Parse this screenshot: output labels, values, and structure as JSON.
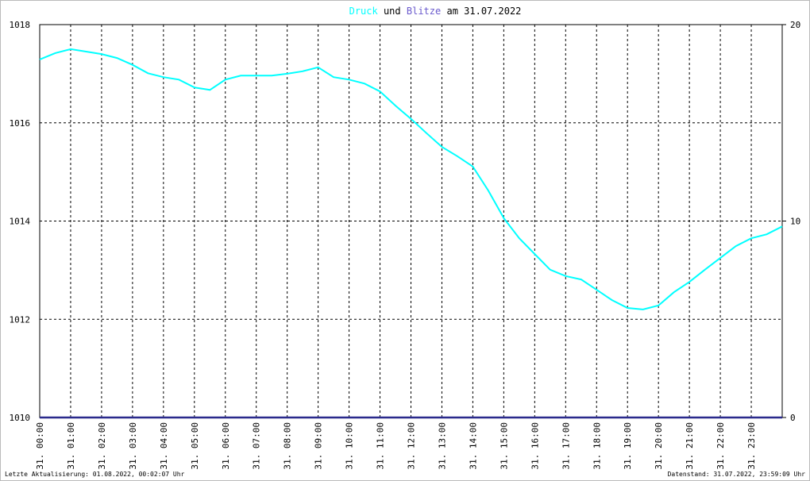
{
  "chart_data": {
    "type": "line",
    "title": [
      "Druck",
      "und",
      "Blitze",
      "am 31.07.2022"
    ],
    "x": [
      0,
      0.5,
      1,
      1.5,
      2,
      2.5,
      3,
      3.5,
      4,
      4.5,
      5,
      5.5,
      6,
      6.5,
      7,
      7.5,
      8,
      8.5,
      9,
      9.5,
      10,
      10.5,
      11,
      11.5,
      12,
      12.5,
      13,
      13.5,
      14,
      14.5,
      15,
      15.5,
      16,
      16.5,
      17,
      17.5,
      18,
      18.5,
      19,
      19.5,
      20,
      20.5,
      21,
      21.5,
      22,
      22.5,
      23,
      23.5,
      24
    ],
    "series": [
      {
        "name": "Druck",
        "color": "#00ffff",
        "values": [
          1017.29,
          1017.42,
          1017.5,
          1017.45,
          1017.4,
          1017.32,
          1017.18,
          1017.01,
          1016.93,
          1016.88,
          1016.72,
          1016.67,
          1016.88,
          1016.96,
          1016.96,
          1016.96,
          1017.0,
          1017.05,
          1017.13,
          1016.93,
          1016.88,
          1016.8,
          1016.64,
          1016.35,
          1016.08,
          1015.79,
          1015.51,
          1015.32,
          1015.11,
          1014.62,
          1014.06,
          1013.65,
          1013.33,
          1013.01,
          1012.88,
          1012.81,
          1012.6,
          1012.39,
          1012.23,
          1012.2,
          1012.28,
          1012.55,
          1012.76,
          1013.01,
          1013.25,
          1013.49,
          1013.65,
          1013.73,
          1013.89
        ]
      },
      {
        "name": "Blitze",
        "color": "#2a2a8c",
        "axis": "y2",
        "values": [
          0,
          0,
          0,
          0,
          0,
          0,
          0,
          0,
          0,
          0,
          0,
          0,
          0,
          0,
          0,
          0,
          0,
          0,
          0,
          0,
          0,
          0,
          0,
          0,
          0,
          0,
          0,
          0,
          0,
          0,
          0,
          0,
          0,
          0,
          0,
          0,
          0,
          0,
          0,
          0,
          0,
          0,
          0,
          0,
          0,
          0,
          0,
          0,
          0
        ]
      }
    ],
    "xlim": [
      0,
      24
    ],
    "xticks": [
      {
        "value": 0,
        "label": "31. 00:00"
      },
      {
        "value": 1,
        "label": "31. 01:00"
      },
      {
        "value": 2,
        "label": "31. 02:00"
      },
      {
        "value": 3,
        "label": "31. 03:00"
      },
      {
        "value": 4,
        "label": "31. 04:00"
      },
      {
        "value": 5,
        "label": "31. 05:00"
      },
      {
        "value": 6,
        "label": "31. 06:00"
      },
      {
        "value": 7,
        "label": "31. 07:00"
      },
      {
        "value": 8,
        "label": "31. 08:00"
      },
      {
        "value": 9,
        "label": "31. 09:00"
      },
      {
        "value": 10,
        "label": "31. 10:00"
      },
      {
        "value": 11,
        "label": "31. 11:00"
      },
      {
        "value": 12,
        "label": "31. 12:00"
      },
      {
        "value": 13,
        "label": "31. 13:00"
      },
      {
        "value": 14,
        "label": "31. 14:00"
      },
      {
        "value": 15,
        "label": "31. 15:00"
      },
      {
        "value": 16,
        "label": "31. 16:00"
      },
      {
        "value": 17,
        "label": "31. 17:00"
      },
      {
        "value": 18,
        "label": "31. 18:00"
      },
      {
        "value": 19,
        "label": "31. 19:00"
      },
      {
        "value": 20,
        "label": "31. 20:00"
      },
      {
        "value": 21,
        "label": "31. 21:00"
      },
      {
        "value": 22,
        "label": "31. 22:00"
      },
      {
        "value": 23,
        "label": "31. 23:00"
      }
    ],
    "ylim": [
      1010,
      1018
    ],
    "yticks": [
      1010,
      1012,
      1014,
      1016,
      1018
    ],
    "y2lim": [
      0,
      20
    ],
    "y2ticks": [
      0,
      10,
      20
    ],
    "grid": true,
    "annotations": [
      "Letzte Aktualisierung: 01.08.2022, 00:02:07 Uhr",
      "Datenstand: 31.07.2022, 23:59:09 Uhr"
    ]
  }
}
